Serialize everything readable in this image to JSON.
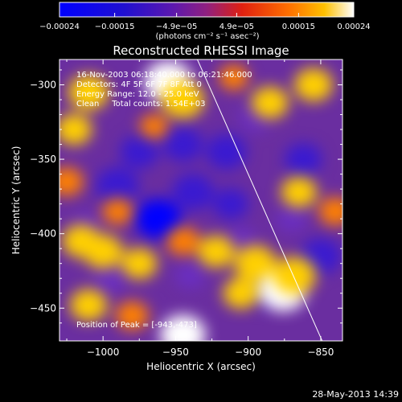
{
  "chart_data": {
    "type": "heatmap",
    "title": "Reconstructed RHESSI Image",
    "xlabel": "Heliocentric X (arcsec)",
    "ylabel": "Heliocentric Y (arcsec)",
    "xlim": [
      -1030,
      -835
    ],
    "ylim": [
      -472,
      -283
    ],
    "x_ticks": [
      -1000,
      -950,
      -900,
      -850
    ],
    "y_ticks": [
      -300,
      -350,
      -400,
      -450
    ],
    "x_tick_labels": [
      "−1000",
      "−950",
      "−900",
      "−850"
    ],
    "y_tick_labels": [
      "−300",
      "−350",
      "−400",
      "−450"
    ],
    "colorbar": {
      "label": "(photons cm⁻² s⁻¹ asec⁻²)",
      "range": [
        -0.00024,
        0.00024
      ],
      "tick_labels": [
        "−0.00024",
        "−0.00015",
        "−4.9e−05",
        "4.9e−05",
        "0.00015",
        "0.00024"
      ],
      "tick_values": [
        -0.00024,
        -0.00015,
        -4.9e-05,
        4.9e-05,
        0.00015,
        0.00024
      ]
    },
    "annotations": [
      "16-Nov-2003 06:18:40.000 to 06:21:46.000",
      "Detectors: 4F 5F 6F 7F 8F  Att 0",
      "Energy Range: 12.0 - 25.0 keV",
      "Clean     Total counts: 1.54E+03",
      "Position of Peak = [-943,-473]"
    ],
    "peak": {
      "x": -943,
      "y": -473
    },
    "limb_line": [
      [
        -935,
        -283
      ],
      [
        -849,
        -472
      ]
    ],
    "colors": [
      "#0000ff",
      "#3a1ad0",
      "#6a2ec0",
      "#b02a80",
      "#ff3000",
      "#ff8000",
      "#ffd000",
      "#ffffff"
    ],
    "blobs": [
      {
        "x": -975,
        "y": -345,
        "v": -0.00016
      },
      {
        "x": -990,
        "y": -368,
        "v": -0.0002
      },
      {
        "x": -962,
        "y": -390,
        "v": -0.00022
      },
      {
        "x": -945,
        "y": -340,
        "v": -0.00017
      },
      {
        "x": -938,
        "y": -372,
        "v": -0.00019
      },
      {
        "x": -915,
        "y": -345,
        "v": -0.00018
      },
      {
        "x": -912,
        "y": -380,
        "v": -0.00014
      },
      {
        "x": -895,
        "y": -322,
        "v": -0.00012
      },
      {
        "x": -862,
        "y": -350,
        "v": -0.00015
      },
      {
        "x": -850,
        "y": -415,
        "v": -0.00018
      },
      {
        "x": -885,
        "y": -440,
        "v": -0.00014
      },
      {
        "x": -1012,
        "y": -395,
        "v": -0.0001
      },
      {
        "x": -995,
        "y": -430,
        "v": -0.00012
      },
      {
        "x": -940,
        "y": -428,
        "v": -0.0001
      },
      {
        "x": -905,
        "y": -405,
        "v": -0.00011
      },
      {
        "x": -870,
        "y": -390,
        "v": -0.0001
      },
      {
        "x": -955,
        "y": -298,
        "v": 0.00024
      },
      {
        "x": -945,
        "y": -310,
        "v": 0.0002
      },
      {
        "x": -1010,
        "y": -305,
        "v": 0.00018
      },
      {
        "x": -1020,
        "y": -330,
        "v": 0.00014
      },
      {
        "x": -1025,
        "y": -365,
        "v": 0.00012
      },
      {
        "x": -1015,
        "y": -405,
        "v": 0.00016
      },
      {
        "x": -1000,
        "y": -412,
        "v": 0.00017
      },
      {
        "x": -975,
        "y": -420,
        "v": 0.00014
      },
      {
        "x": -945,
        "y": -405,
        "v": 0.00012
      },
      {
        "x": -922,
        "y": -412,
        "v": 0.00015
      },
      {
        "x": -895,
        "y": -420,
        "v": 0.00019
      },
      {
        "x": -876,
        "y": -438,
        "v": 0.00024
      },
      {
        "x": -868,
        "y": -428,
        "v": 0.0002
      },
      {
        "x": -905,
        "y": -440,
        "v": 0.00014
      },
      {
        "x": -1010,
        "y": -448,
        "v": 0.00015
      },
      {
        "x": -980,
        "y": -455,
        "v": 0.00012
      },
      {
        "x": -945,
        "y": -468,
        "v": 0.00022
      },
      {
        "x": -885,
        "y": -312,
        "v": 0.00015
      },
      {
        "x": -855,
        "y": -300,
        "v": 0.00016
      },
      {
        "x": -865,
        "y": -372,
        "v": 0.00014
      },
      {
        "x": -840,
        "y": -385,
        "v": 0.00012
      },
      {
        "x": -910,
        "y": -295,
        "v": 9e-05
      },
      {
        "x": -965,
        "y": -328,
        "v": 8e-05
      },
      {
        "x": -990,
        "y": -385,
        "v": 0.0001
      }
    ]
  },
  "footer": {
    "date": "28-May-2013 14:39"
  }
}
